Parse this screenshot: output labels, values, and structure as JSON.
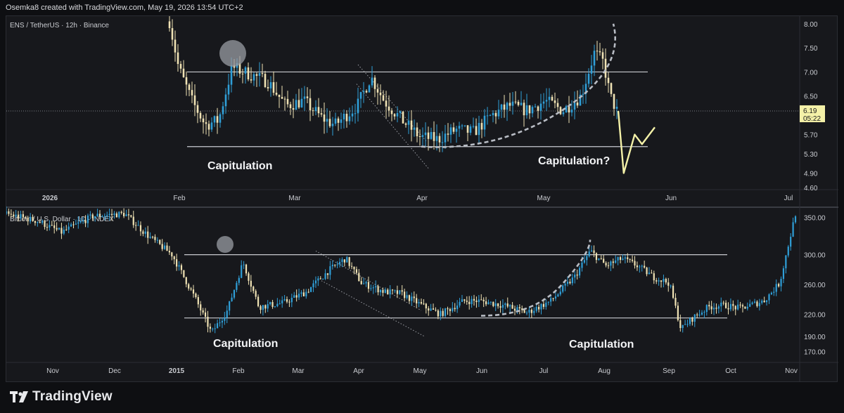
{
  "header": {
    "credit": "Osemka8 created with TradingView.com, May 19, 2026 13:54 UTC+2"
  },
  "footer": {
    "logo_text": "TradingView",
    "logo_icon": "tradingview-logo-icon"
  },
  "colors": {
    "background": "#17181c",
    "up_candle": "#2f9fd8",
    "down_candle": "#efe2b4",
    "level_line": "#c9cbd0",
    "curve": "#b8bcc4",
    "projection": "#f4f1a8",
    "price_badge": "#f4f1a8",
    "capitulation_circle": "#9a9ca3"
  },
  "chart_data": [
    {
      "type": "candlestick",
      "title": "ENS / TetherUS · 12h · Binance",
      "x_ticks": [
        "2026",
        "Feb",
        "Mar",
        "Apr",
        "May",
        "Jun",
        "Jul"
      ],
      "y_ticks": [
        "8.00",
        "7.50",
        "7.00",
        "6.50",
        "6.19",
        "5.70",
        "5.30",
        "4.90",
        "4.60"
      ],
      "ylim": [
        4.6,
        8.1
      ],
      "current_price": "6.19",
      "countdown": "05:22",
      "horizontal_levels": [
        7.0,
        5.45
      ],
      "series_path": [
        [
          0.0,
          8.05
        ],
        [
          0.02,
          7.1
        ],
        [
          0.05,
          6.4
        ],
        [
          0.08,
          5.9
        ],
        [
          0.11,
          6.0
        ],
        [
          0.14,
          7.1
        ],
        [
          0.18,
          6.95
        ],
        [
          0.22,
          6.8
        ],
        [
          0.26,
          6.3
        ],
        [
          0.3,
          6.4
        ],
        [
          0.34,
          6.05
        ],
        [
          0.37,
          5.9
        ],
        [
          0.42,
          6.3
        ],
        [
          0.45,
          6.9
        ],
        [
          0.48,
          6.4
        ],
        [
          0.52,
          6.0
        ],
        [
          0.56,
          5.65
        ],
        [
          0.6,
          5.6
        ],
        [
          0.64,
          5.8
        ],
        [
          0.68,
          5.75
        ],
        [
          0.72,
          6.1
        ],
        [
          0.76,
          6.3
        ],
        [
          0.8,
          6.2
        ],
        [
          0.84,
          6.4
        ],
        [
          0.88,
          6.2
        ],
        [
          0.92,
          6.5
        ],
        [
          0.95,
          7.4
        ],
        [
          0.97,
          7.2
        ],
        [
          0.985,
          6.5
        ],
        [
          1.0,
          6.19
        ]
      ],
      "projection_path": [
        [
          0.0,
          6.19
        ],
        [
          0.15,
          4.9
        ],
        [
          0.45,
          5.7
        ],
        [
          0.65,
          5.5
        ],
        [
          1.0,
          5.85
        ]
      ],
      "annotations": [
        "Capitulation",
        "Capitulation?"
      ]
    },
    {
      "type": "candlestick",
      "title": "Bitcoin / U.S. Dollar · 1D · INDEX",
      "x_ticks": [
        "Nov",
        "Dec",
        "2015",
        "Feb",
        "Mar",
        "Apr",
        "May",
        "Jun",
        "Jul",
        "Aug",
        "Sep",
        "Oct",
        "Nov"
      ],
      "y_ticks": [
        "350.00",
        "300.00",
        "260.00",
        "220.00",
        "190.00",
        "170.00"
      ],
      "ylim": [
        160,
        360
      ],
      "horizontal_levels": [
        300,
        215
      ],
      "series_path": [
        [
          0.0,
          355
        ],
        [
          0.04,
          345
        ],
        [
          0.07,
          330
        ],
        [
          0.11,
          352
        ],
        [
          0.15,
          355
        ],
        [
          0.18,
          325
        ],
        [
          0.21,
          300
        ],
        [
          0.24,
          240
        ],
        [
          0.26,
          195
        ],
        [
          0.28,
          225
        ],
        [
          0.3,
          290
        ],
        [
          0.32,
          230
        ],
        [
          0.35,
          235
        ],
        [
          0.38,
          250
        ],
        [
          0.41,
          280
        ],
        [
          0.43,
          295
        ],
        [
          0.45,
          262
        ],
        [
          0.48,
          250
        ],
        [
          0.5,
          248
        ],
        [
          0.53,
          230
        ],
        [
          0.55,
          220
        ],
        [
          0.58,
          238
        ],
        [
          0.6,
          238
        ],
        [
          0.63,
          232
        ],
        [
          0.66,
          222
        ],
        [
          0.69,
          238
        ],
        [
          0.72,
          270
        ],
        [
          0.74,
          305
        ],
        [
          0.76,
          285
        ],
        [
          0.78,
          295
        ],
        [
          0.8,
          285
        ],
        [
          0.82,
          270
        ],
        [
          0.84,
          262
        ],
        [
          0.855,
          200
        ],
        [
          0.87,
          215
        ],
        [
          0.89,
          230
        ],
        [
          0.91,
          232
        ],
        [
          0.93,
          228
        ],
        [
          0.96,
          238
        ],
        [
          0.98,
          262
        ],
        [
          1.0,
          355
        ]
      ],
      "annotations": [
        "Capitulation",
        "Capitulation"
      ]
    }
  ]
}
